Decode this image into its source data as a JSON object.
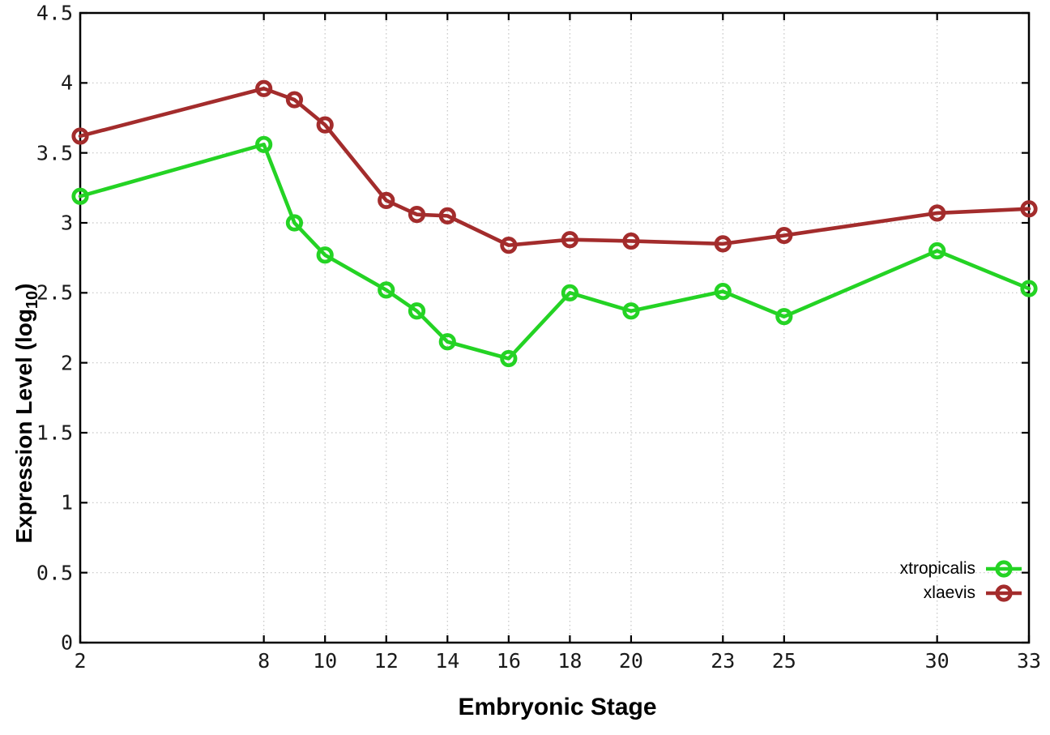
{
  "figure": {
    "background": "#ffffff",
    "border_color": "#000000",
    "grid_color": "#c4c4c4",
    "text_color": "#000000"
  },
  "axes": {
    "x": {
      "title": "Embryonic Stage",
      "min": 2,
      "max": 33,
      "ticks": [
        2,
        8,
        10,
        12,
        14,
        16,
        18,
        20,
        23,
        25,
        30,
        33
      ],
      "tick_labels": [
        "2",
        "8",
        "10",
        "12",
        "14",
        "16",
        "18",
        "20",
        "23",
        "25",
        "30",
        "33"
      ]
    },
    "y": {
      "title_prefix": "Expression Level (log",
      "title_sub": "10",
      "title_suffix": ")",
      "min": 0,
      "max": 4.5,
      "ticks": [
        0,
        0.5,
        1,
        1.5,
        2,
        2.5,
        3,
        3.5,
        4,
        4.5
      ],
      "tick_labels": [
        "0",
        "0.5",
        "1",
        "1.5",
        "2",
        "2.5",
        "3",
        "3.5",
        "4",
        "4.5"
      ]
    }
  },
  "chart_data": {
    "type": "line",
    "x": [
      2,
      8,
      9,
      10,
      12,
      13,
      14,
      16,
      18,
      20,
      23,
      25,
      30,
      33
    ],
    "series": [
      {
        "name": "xtropicalis",
        "color": "#24d324",
        "values": [
          3.19,
          3.56,
          3.0,
          2.77,
          2.52,
          2.37,
          2.15,
          2.03,
          2.5,
          2.37,
          2.51,
          2.33,
          2.8,
          2.53
        ]
      },
      {
        "name": "xlaevis",
        "color": "#a32c2c",
        "values": [
          3.62,
          3.96,
          3.88,
          3.7,
          3.16,
          3.06,
          3.05,
          2.84,
          2.88,
          2.87,
          2.85,
          2.91,
          3.07,
          3.1
        ]
      }
    ],
    "title": "",
    "xlabel": "Embryonic Stage",
    "ylabel": "Expression Level (log10)",
    "xlim": [
      2,
      33
    ],
    "ylim": [
      0,
      4.5
    ],
    "grid": "dotted",
    "legend_position": "inside bottom-right",
    "marker": "open-circle"
  }
}
